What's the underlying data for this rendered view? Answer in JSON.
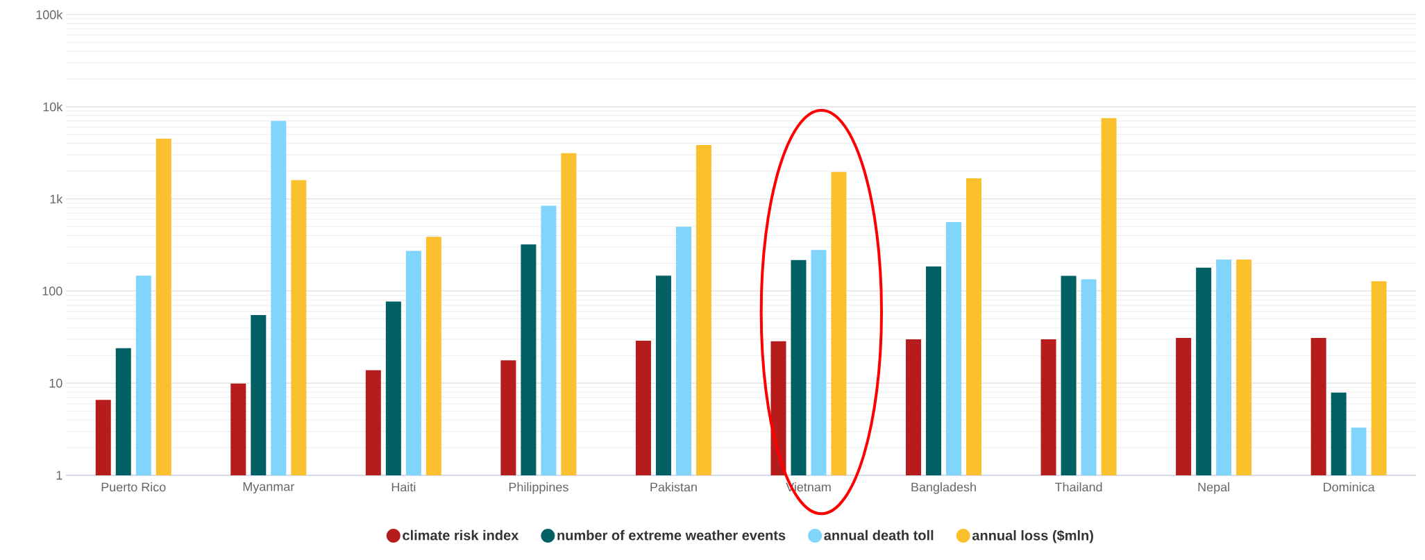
{
  "chart_data": {
    "type": "bar",
    "categories": [
      "Puerto Rico",
      "Myanmar",
      "Haiti",
      "Philippines",
      "Pakistan",
      "Vietnam",
      "Bangladesh",
      "Thailand",
      "Nepal",
      "Dominica"
    ],
    "series": [
      {
        "name": "climate risk index",
        "color": "#b71c1c",
        "values": [
          6.6,
          9.9,
          13.8,
          17.7,
          28.9,
          28.5,
          29.9,
          29.9,
          31,
          31
        ]
      },
      {
        "name": "number of extreme weather events",
        "color": "#006064",
        "values": [
          24,
          55,
          77,
          320,
          147,
          217,
          185,
          146,
          179,
          7.9
        ]
      },
      {
        "name": "annual death toll",
        "color": "#81d4fa",
        "values": [
          147,
          7000,
          273,
          843,
          499,
          279,
          560,
          134,
          220,
          3.3
        ]
      },
      {
        "name": "annual loss ($mln)",
        "color": "#fbc02d",
        "values": [
          4500,
          1600,
          388,
          3130,
          3840,
          1960,
          1670,
          7520,
          220,
          128
        ]
      }
    ],
    "ylim": [
      1,
      100000
    ],
    "yticks": [
      1,
      10,
      100,
      {
        "value": 1000,
        "label": "1k"
      },
      {
        "value": 10000,
        "label": "10k"
      },
      {
        "value": 100000,
        "label": "100k"
      }
    ],
    "log": "y",
    "grid": "y",
    "legend": "bottom"
  }
}
